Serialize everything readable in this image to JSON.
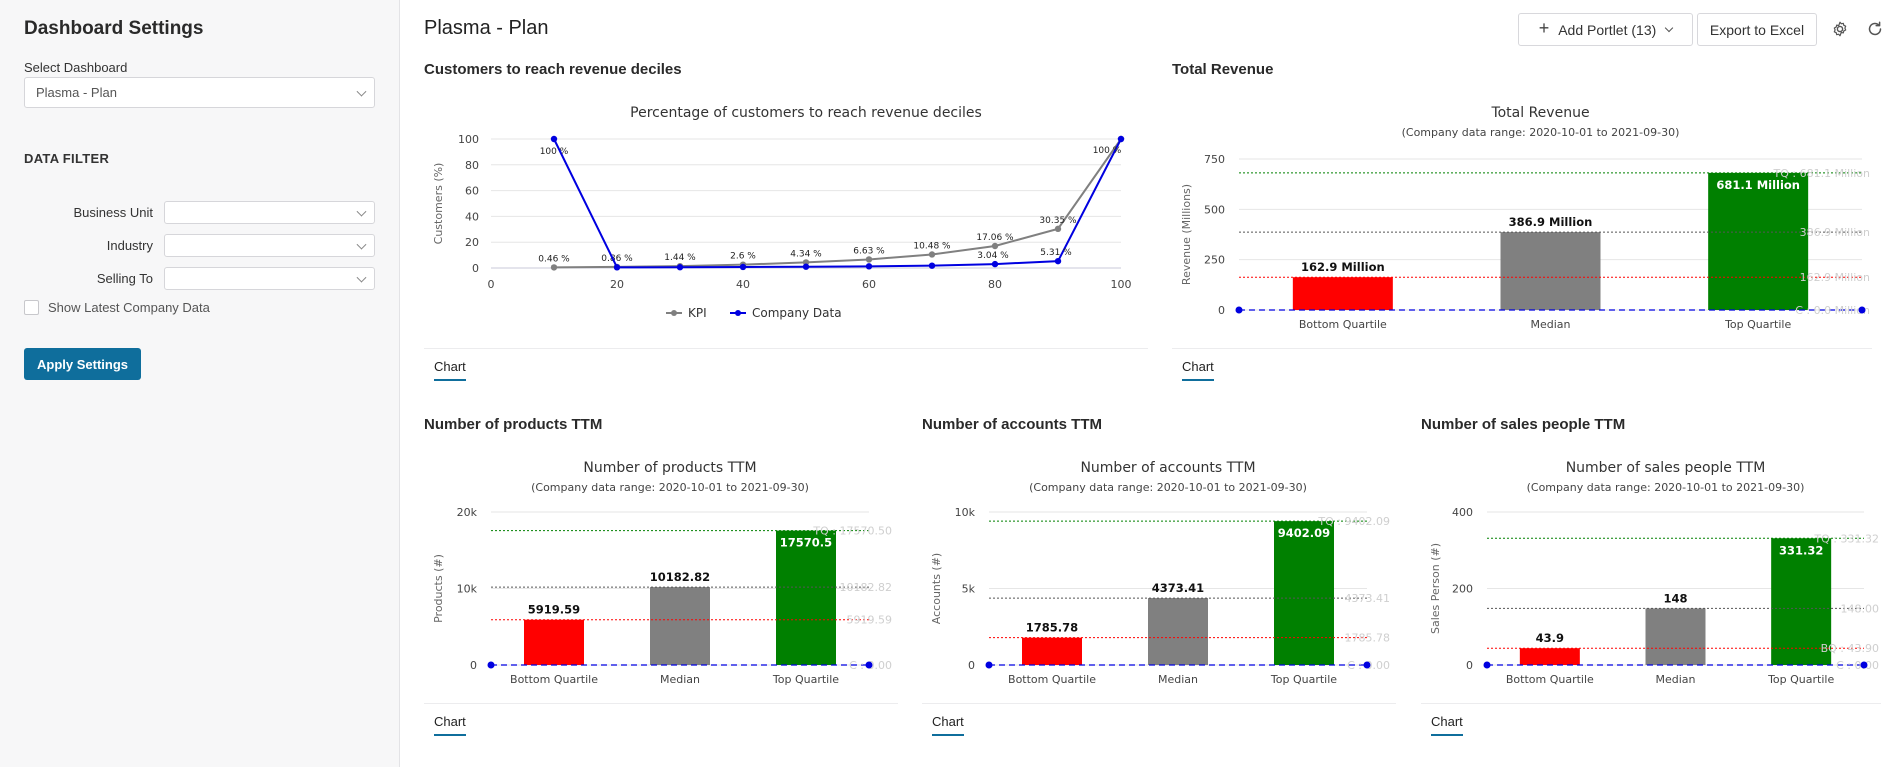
{
  "sidebar": {
    "title": "Dashboard Settings",
    "select_label": "Select Dashboard",
    "selected_dashboard": "Plasma - Plan",
    "section_title": "DATA FILTER",
    "filters": [
      {
        "label": "Business Unit",
        "value": ""
      },
      {
        "label": "Industry",
        "value": ""
      },
      {
        "label": "Selling To",
        "value": ""
      }
    ],
    "checkbox_label": "Show Latest Company Data",
    "apply_label": "Apply Settings"
  },
  "header": {
    "title": "Plasma - Plan",
    "add_portlet_label": "Add Portlet (13)",
    "export_label": "Export to Excel",
    "icons": [
      "settings-icon",
      "refresh-icon"
    ]
  },
  "portlets": [
    {
      "title": "Customers to reach revenue deciles",
      "tab": "Chart"
    },
    {
      "title": "Total Revenue",
      "tab": "Chart"
    },
    {
      "title": "Number of products TTM",
      "tab": "Chart"
    },
    {
      "title": "Number of accounts TTM",
      "tab": "Chart"
    },
    {
      "title": "Number of sales people TTM",
      "tab": "Chart"
    }
  ],
  "colors": {
    "kpi": "#808080",
    "company": "#0000e0",
    "bottom": "#ff0000",
    "median": "#808080",
    "top": "#008000",
    "accent": "#0f6e9c"
  },
  "chart_data": [
    {
      "type": "line",
      "title": "Percentage of customers to reach revenue deciles",
      "xlabel": "",
      "ylabel": "Customers (%)",
      "xlim": [
        0,
        100
      ],
      "ylim": [
        0,
        100
      ],
      "xticks": [
        0,
        20,
        40,
        60,
        80,
        100
      ],
      "yticks": [
        0,
        20,
        40,
        60,
        80,
        100
      ],
      "series": [
        {
          "name": "KPI",
          "x": [
            10,
            20,
            30,
            40,
            50,
            60,
            70,
            80,
            90,
            100
          ],
          "y": [
            0.46,
            0.86,
            1.44,
            2.6,
            4.34,
            6.63,
            10.48,
            17.06,
            30.35,
            100
          ],
          "labels": [
            "0.46 %",
            "0.86 %",
            "1.44 %",
            "2.6 %",
            "4.34 %",
            "6.63 %",
            "10.48 %",
            "17.06 %",
            "30.35 %",
            ""
          ]
        },
        {
          "name": "Company Data",
          "x": [
            10,
            20,
            30,
            40,
            50,
            60,
            70,
            80,
            90,
            100
          ],
          "y": [
            100,
            0.5,
            0.6,
            0.8,
            1.0,
            1.3,
            1.8,
            3.04,
            5.31,
            100
          ],
          "labels": [
            "100 %",
            "",
            "",
            "",
            "",
            "",
            "",
            "3.04 %",
            "5.31 %",
            "100 %"
          ]
        }
      ],
      "legend": "bottom"
    },
    {
      "type": "bar",
      "title": "Total Revenue",
      "subtitle": "(Company data range: 2020-10-01 to 2021-09-30)",
      "ylabel": "Revenue (Millions)",
      "ylim": [
        0,
        750
      ],
      "yticks": [
        0,
        250,
        500,
        750
      ],
      "tick_labels": [
        "0",
        "250",
        "500",
        "750"
      ],
      "categories": [
        "Bottom Quartile",
        "Median",
        "Top Quartile"
      ],
      "values": [
        162.9,
        386.9,
        681.1
      ],
      "value_labels": [
        "162.9 Million",
        "386.9 Million",
        "681.1 Million"
      ],
      "refs": [
        {
          "value": 681.1,
          "label": "TQ : 681.1 Million"
        },
        {
          "value": 386.9,
          "label": "386.9 Million"
        },
        {
          "value": 162.9,
          "label": "162.9 Million"
        },
        {
          "value": 0,
          "label": "C : 0.0 Million"
        }
      ]
    },
    {
      "type": "bar",
      "title": "Number of products TTM",
      "subtitle": "(Company data range: 2020-10-01 to 2021-09-30)",
      "ylabel": "Products (#)",
      "ylim": [
        0,
        20000
      ],
      "yticks": [
        0,
        10000,
        20000
      ],
      "tick_labels": [
        "0",
        "10k",
        "20k"
      ],
      "categories": [
        "Bottom Quartile",
        "Median",
        "Top Quartile"
      ],
      "values": [
        5919.59,
        10182.82,
        17570.5
      ],
      "value_labels": [
        "5919.59",
        "10182.82",
        "17570.5"
      ],
      "refs": [
        {
          "value": 17570.5,
          "label": "TQ : 17570.50"
        },
        {
          "value": 10182.82,
          "label": "10182.82"
        },
        {
          "value": 5919.59,
          "label": "5919.59"
        },
        {
          "value": 0,
          "label": "C : 0.00"
        }
      ]
    },
    {
      "type": "bar",
      "title": "Number of accounts TTM",
      "subtitle": "(Company data range: 2020-10-01 to 2021-09-30)",
      "ylabel": "Accounts (#)",
      "ylim": [
        0,
        10000
      ],
      "yticks": [
        0,
        5000,
        10000
      ],
      "tick_labels": [
        "0",
        "5k",
        "10k"
      ],
      "categories": [
        "Bottom Quartile",
        "Median",
        "Top Quartile"
      ],
      "values": [
        1785.78,
        4373.41,
        9402.09
      ],
      "value_labels": [
        "1785.78",
        "4373.41",
        "9402.09"
      ],
      "refs": [
        {
          "value": 9402.09,
          "label": "TQ : 9402.09"
        },
        {
          "value": 4373.41,
          "label": "4373.41"
        },
        {
          "value": 1785.78,
          "label": "1785.78"
        },
        {
          "value": 0,
          "label": "C : 0.00"
        }
      ]
    },
    {
      "type": "bar",
      "title": "Number of sales people TTM",
      "subtitle": "(Company data range: 2020-10-01 to 2021-09-30)",
      "ylabel": "Sales Person (#)",
      "ylim": [
        0,
        400
      ],
      "yticks": [
        0,
        200,
        400
      ],
      "tick_labels": [
        "0",
        "200",
        "400"
      ],
      "categories": [
        "Bottom Quartile",
        "Median",
        "Top Quartile"
      ],
      "values": [
        43.9,
        148,
        331.32
      ],
      "value_labels": [
        "43.9",
        "148",
        "331.32"
      ],
      "refs": [
        {
          "value": 331.32,
          "label": "TQ : 331.32"
        },
        {
          "value": 148,
          "label": "148.00"
        },
        {
          "value": 43.9,
          "label": "BQ : 43.90"
        },
        {
          "value": 0,
          "label": "C : 0.00"
        }
      ]
    }
  ]
}
